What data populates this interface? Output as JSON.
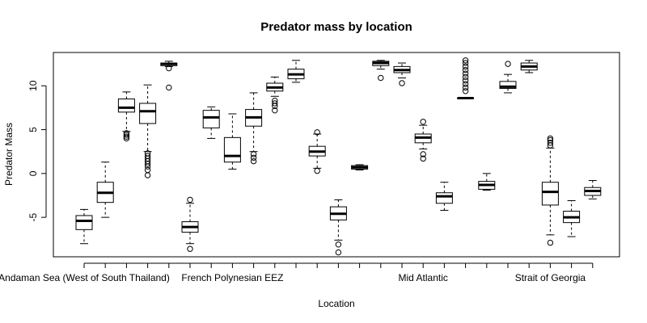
{
  "chart_data": {
    "type": "box",
    "title": "Predator mass by location",
    "xlabel": "Location",
    "ylabel": "Predator Mass",
    "ylim": [
      -9.5,
      13.8
    ],
    "yticks": [
      -5,
      0,
      5,
      10
    ],
    "ytick_labels": [
      "-5",
      "0",
      "5",
      "10"
    ],
    "x_tick_count": 25,
    "x_tick_labels_shown": [
      {
        "index": 1,
        "label": "Andaman Sea (West of South Thailand)"
      },
      {
        "index": 8,
        "label": "French Polynesian EEZ"
      },
      {
        "index": 17,
        "label": "Mid Atlantic"
      },
      {
        "index": 23,
        "label": "Strait of Georgia"
      }
    ],
    "boxes": [
      {
        "index": 1,
        "min": -8.0,
        "q1": -6.4,
        "median": -5.4,
        "q3": -4.8,
        "max": -4.1,
        "outliers": []
      },
      {
        "index": 2,
        "min": -5.0,
        "q1": -3.3,
        "median": -2.2,
        "q3": -1.0,
        "max": 1.3,
        "outliers": []
      },
      {
        "index": 3,
        "min": 4.8,
        "q1": 7.0,
        "median": 7.5,
        "q3": 8.5,
        "max": 9.3,
        "outliers": [
          4.6,
          4.4,
          4.2,
          4.0
        ]
      },
      {
        "index": 4,
        "min": 2.5,
        "q1": 5.7,
        "median": 7.1,
        "q3": 8.0,
        "max": 10.1,
        "outliers": [
          2.3,
          2.0,
          1.7,
          1.4,
          1.1,
          0.8,
          0.4,
          -0.2
        ]
      },
      {
        "index": 5,
        "min": 12.2,
        "q1": 12.3,
        "median": 12.5,
        "q3": 12.6,
        "max": 12.8,
        "outliers": [
          12.0,
          9.8
        ]
      },
      {
        "index": 6,
        "min": -8.0,
        "q1": -6.7,
        "median": -6.1,
        "q3": -5.5,
        "max": -3.4,
        "outliers": [
          -3.0,
          -8.6
        ]
      },
      {
        "index": 7,
        "min": 4.0,
        "q1": 5.2,
        "median": 6.4,
        "q3": 7.2,
        "max": 7.6,
        "outliers": []
      },
      {
        "index": 8,
        "min": 0.5,
        "q1": 1.3,
        "median": 2.0,
        "q3": 4.1,
        "max": 6.8,
        "outliers": []
      },
      {
        "index": 9,
        "min": 2.5,
        "q1": 5.4,
        "median": 6.4,
        "q3": 7.3,
        "max": 9.2,
        "outliers": [
          2.2,
          1.8,
          1.4
        ]
      },
      {
        "index": 10,
        "min": 8.8,
        "q1": 9.4,
        "median": 9.8,
        "q3": 10.3,
        "max": 11.0,
        "outliers": [
          8.3,
          8.0,
          7.7,
          7.2
        ]
      },
      {
        "index": 11,
        "min": 10.4,
        "q1": 10.8,
        "median": 11.3,
        "q3": 11.9,
        "max": 12.9,
        "outliers": []
      },
      {
        "index": 12,
        "min": 0.6,
        "q1": 2.0,
        "median": 2.5,
        "q3": 3.1,
        "max": 4.5,
        "outliers": [
          4.7,
          0.3
        ]
      },
      {
        "index": 13,
        "min": -7.6,
        "q1": -5.3,
        "median": -4.6,
        "q3": -3.8,
        "max": -3.0,
        "outliers": [
          -8.1,
          -9.0
        ]
      },
      {
        "index": 14,
        "min": 0.4,
        "q1": 0.5,
        "median": 0.7,
        "q3": 0.9,
        "max": 1.0,
        "outliers": []
      },
      {
        "index": 15,
        "min": 11.9,
        "q1": 12.3,
        "median": 12.6,
        "q3": 12.8,
        "max": 12.9,
        "outliers": [
          10.9
        ]
      },
      {
        "index": 16,
        "min": 10.9,
        "q1": 11.5,
        "median": 11.8,
        "q3": 12.2,
        "max": 12.6,
        "outliers": [
          10.3
        ]
      },
      {
        "index": 17,
        "min": 2.8,
        "q1": 3.5,
        "median": 4.1,
        "q3": 4.5,
        "max": 5.5,
        "outliers": [
          5.9,
          2.2,
          1.7
        ]
      },
      {
        "index": 18,
        "min": -4.2,
        "q1": -3.4,
        "median": -2.6,
        "q3": -2.2,
        "max": -1.0,
        "outliers": []
      },
      {
        "index": 19,
        "min": 8.6,
        "q1": 8.6,
        "median": 8.6,
        "q3": 8.6,
        "max": 8.6,
        "outliers": [
          9.4,
          9.8,
          10.2,
          10.6,
          11.0,
          11.4,
          11.8,
          12.2,
          12.6,
          12.9
        ]
      },
      {
        "index": 20,
        "min": -1.9,
        "q1": -1.8,
        "median": -1.3,
        "q3": -0.9,
        "max": 0.0,
        "outliers": []
      },
      {
        "index": 21,
        "min": 9.2,
        "q1": 9.7,
        "median": 9.9,
        "q3": 10.5,
        "max": 11.3,
        "outliers": [
          12.5
        ]
      },
      {
        "index": 22,
        "min": 11.5,
        "q1": 11.8,
        "median": 12.2,
        "q3": 12.6,
        "max": 12.9,
        "outliers": []
      },
      {
        "index": 23,
        "min": -7.0,
        "q1": -3.6,
        "median": -2.1,
        "q3": -1.0,
        "max": 2.9,
        "outliers": [
          3.2,
          3.5,
          3.8,
          4.0,
          -7.9
        ]
      },
      {
        "index": 24,
        "min": -7.2,
        "q1": -5.6,
        "median": -5.0,
        "q3": -4.3,
        "max": -3.1,
        "outliers": []
      },
      {
        "index": 25,
        "min": -2.9,
        "q1": -2.5,
        "median": -2.0,
        "q3": -1.6,
        "max": -0.8,
        "outliers": []
      }
    ]
  }
}
